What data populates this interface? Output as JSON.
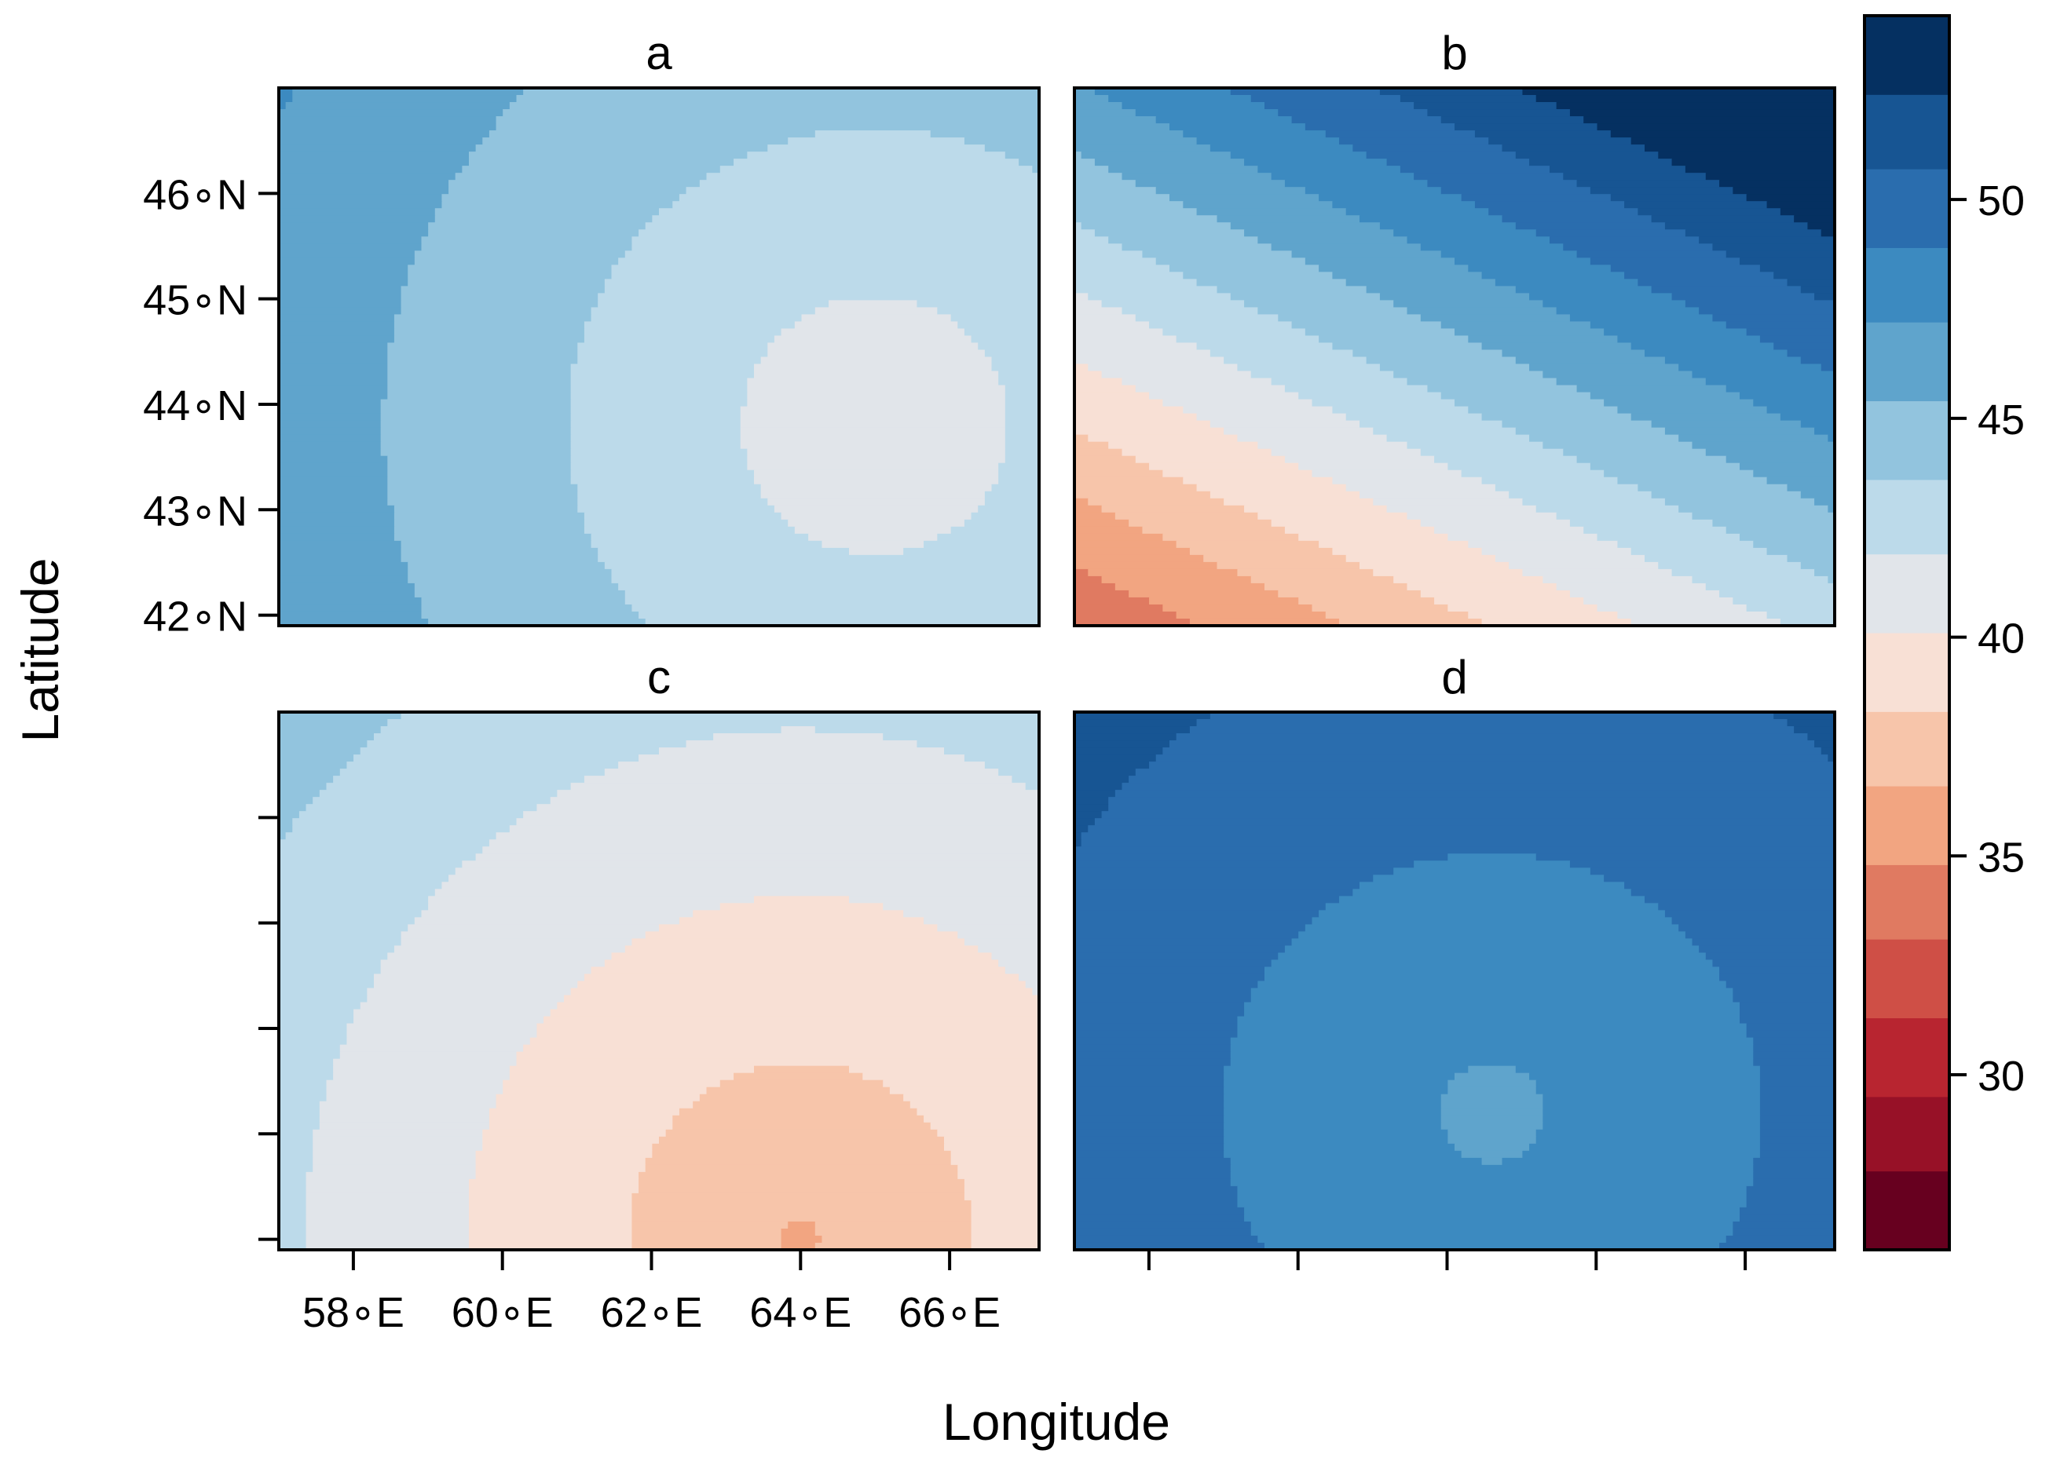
{
  "chart_data": {
    "type": "heatmap",
    "title": "",
    "xlabel": "Longitude",
    "ylabel": "Latitude",
    "xlim": [
      57.0,
      67.2
    ],
    "ylim": [
      41.9,
      47.0
    ],
    "x_ticks": [
      {
        "value": 58,
        "label": "58∘E"
      },
      {
        "value": 60,
        "label": "60∘E"
      },
      {
        "value": 62,
        "label": "62∘E"
      },
      {
        "value": 64,
        "label": "64∘E"
      },
      {
        "value": 66,
        "label": "66∘E"
      }
    ],
    "y_ticks": [
      {
        "value": 42,
        "label": "42∘N"
      },
      {
        "value": 43,
        "label": "43∘N"
      },
      {
        "value": 44,
        "label": "44∘N"
      },
      {
        "value": 45,
        "label": "45∘N"
      },
      {
        "value": 46,
        "label": "46∘N"
      }
    ],
    "legend_placement": "right",
    "colorbar": {
      "breaks": [
        26,
        27.8,
        29.5,
        31.3,
        33.1,
        34.8,
        36.6,
        38.3,
        40.1,
        41.9,
        43.6,
        45.4,
        47.2,
        48.9,
        50.7,
        52.4,
        54.2
      ],
      "colors": [
        "#67001f",
        "#971127",
        "#b82530",
        "#cf4f46",
        "#e07a61",
        "#f2a581",
        "#f7c5aa",
        "#f8e0d5",
        "#e1e5ea",
        "#bcdaea",
        "#92c4de",
        "#5fa4cc",
        "#3c8ac0",
        "#2a6dae",
        "#175593",
        "#053061"
      ],
      "ticks": [
        {
          "value": 30,
          "label": "30"
        },
        {
          "value": 35,
          "label": "35"
        },
        {
          "value": 40,
          "label": "40"
        },
        {
          "value": 45,
          "label": "45"
        },
        {
          "value": 50,
          "label": "50"
        }
      ]
    },
    "panels": [
      {
        "title": "a",
        "cx": 65.0,
        "cy": 43.8,
        "rx": 11.0,
        "ry": 7.5,
        "center_value": 40.6,
        "outer_value": 48.6,
        "gx": 0.0,
        "gy": 0.0,
        "grad_offset": 0.0
      },
      {
        "title": "b",
        "cx": 62.0,
        "cy": 44.0,
        "rx": 10.0,
        "ry": 6.0,
        "center_value": 0.0,
        "outer_value": 0.0,
        "gx": 0.9,
        "gy": 2.7,
        "grad_offset": 33.3
      },
      {
        "title": "c",
        "cx": 64.0,
        "cy": 42.0,
        "rx": 11.0,
        "ry": 8.0,
        "center_value": 36.4,
        "outer_value": 45.5,
        "gx": 0.0,
        "gy": 0.0,
        "grad_offset": 0.0
      },
      {
        "title": "d",
        "cx": 62.6,
        "cy": 43.2,
        "rx": 11.0,
        "ry": 7.5,
        "center_value": 46.8,
        "outer_value": 53.2,
        "gx": 0.0,
        "gy": 0.0,
        "grad_offset": 0.0
      }
    ]
  }
}
